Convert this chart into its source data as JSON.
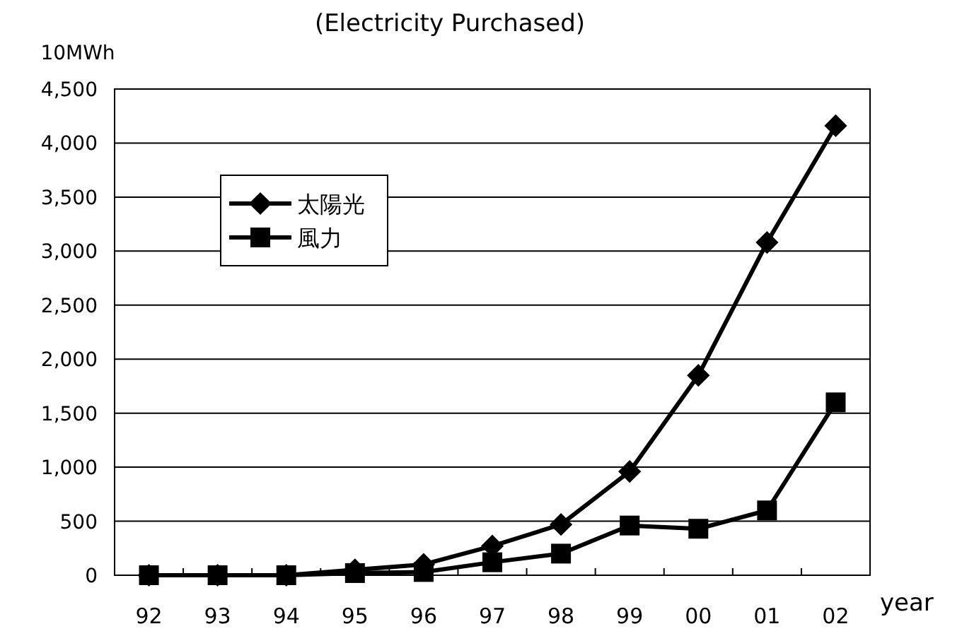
{
  "chart_data": {
    "type": "line",
    "title": "(Electricity Purchased)",
    "ylabel": "10MWh",
    "xlabel": "year",
    "categories": [
      "92",
      "93",
      "94",
      "95",
      "96",
      "97",
      "98",
      "99",
      "00",
      "01",
      "02"
    ],
    "series": [
      {
        "name": "太陽光",
        "color": "#000000",
        "marker": "diamond",
        "values": [
          0,
          0,
          0,
          50,
          100,
          270,
          470,
          960,
          1850,
          3080,
          4160
        ]
      },
      {
        "name": "風力",
        "color": "#000000",
        "marker": "square",
        "values": [
          0,
          0,
          0,
          20,
          30,
          120,
          200,
          460,
          430,
          600,
          1600
        ]
      }
    ],
    "ylim": [
      0,
      4500
    ],
    "yticks": [
      0,
      500,
      {
        "value": 1000,
        "label": "1,000"
      },
      {
        "value": 1500,
        "label": "1,500"
      },
      {
        "value": 2000,
        "label": "2,000"
      },
      {
        "value": 2500,
        "label": "2,500"
      },
      {
        "value": 3000,
        "label": "3,000"
      },
      {
        "value": 3500,
        "label": "3,500"
      },
      {
        "value": 4000,
        "label": "4,000"
      },
      {
        "value": 4500,
        "label": "4,500"
      }
    ],
    "grid": "y",
    "legend": "top left",
    "line_style": "solid"
  }
}
